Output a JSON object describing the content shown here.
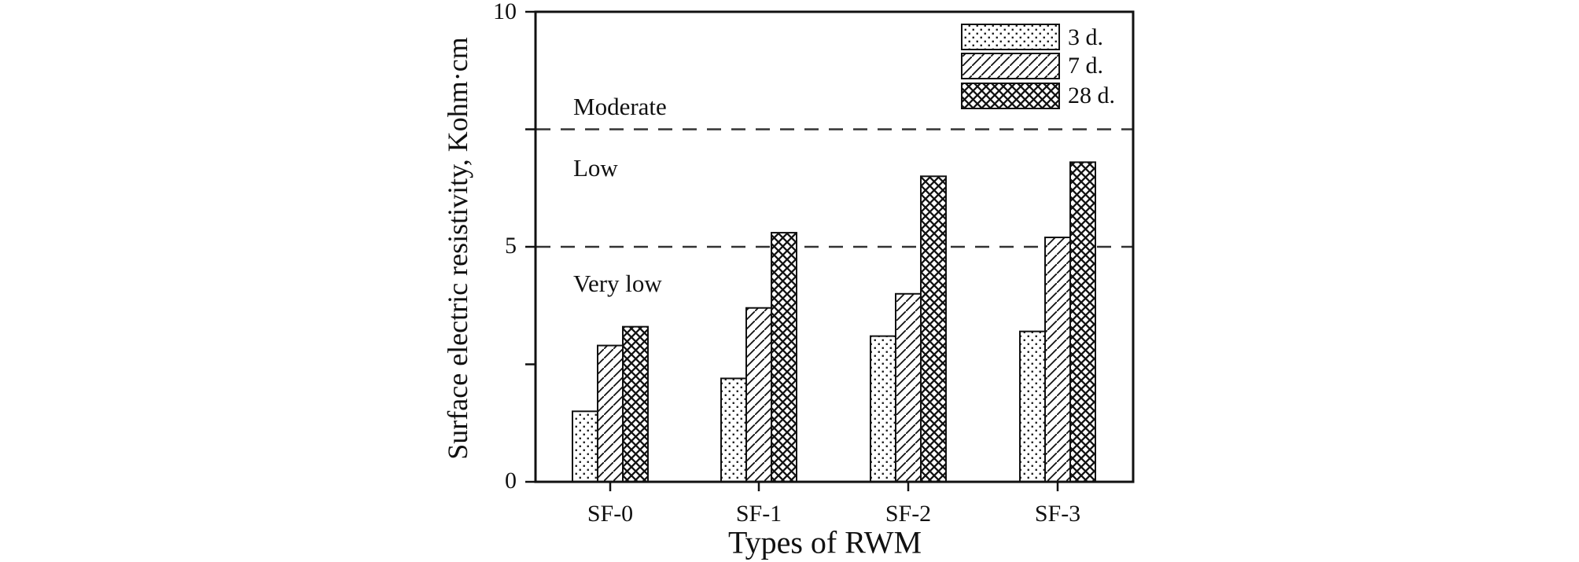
{
  "chart_data": {
    "type": "bar",
    "title": "",
    "xlabel": "Types of RWM",
    "ylabel": "Surface electric resistivity, Kohm·cm",
    "ylim": [
      0,
      10
    ],
    "y_major_ticks": [
      0,
      5,
      10
    ],
    "y_minor_ticks": [
      2.5,
      7.5
    ],
    "y_tick_labels": [
      "0",
      "5",
      "10"
    ],
    "categories": [
      "SF-0",
      "SF-1",
      "SF-2",
      "SF-3"
    ],
    "series": [
      {
        "name": "3 d.",
        "pattern": "dots",
        "values": [
          1.5,
          2.2,
          3.1,
          3.2
        ]
      },
      {
        "name": "7 d.",
        "pattern": "diagonal-hatch",
        "values": [
          2.9,
          3.7,
          4.0,
          5.2
        ]
      },
      {
        "name": "28 d.",
        "pattern": "crosshatch",
        "values": [
          3.3,
          5.3,
          6.5,
          6.8
        ]
      }
    ],
    "threshold_lines": [
      {
        "value": 7.5,
        "style": "dashed"
      },
      {
        "value": 5.0,
        "style": "dashed"
      }
    ],
    "region_labels": [
      "Moderate",
      "Low",
      "Very low"
    ],
    "legend_position": "top-right",
    "grid": false,
    "colors": {
      "ink": "#111111",
      "dash": "#333333",
      "background": "#ffffff"
    }
  }
}
